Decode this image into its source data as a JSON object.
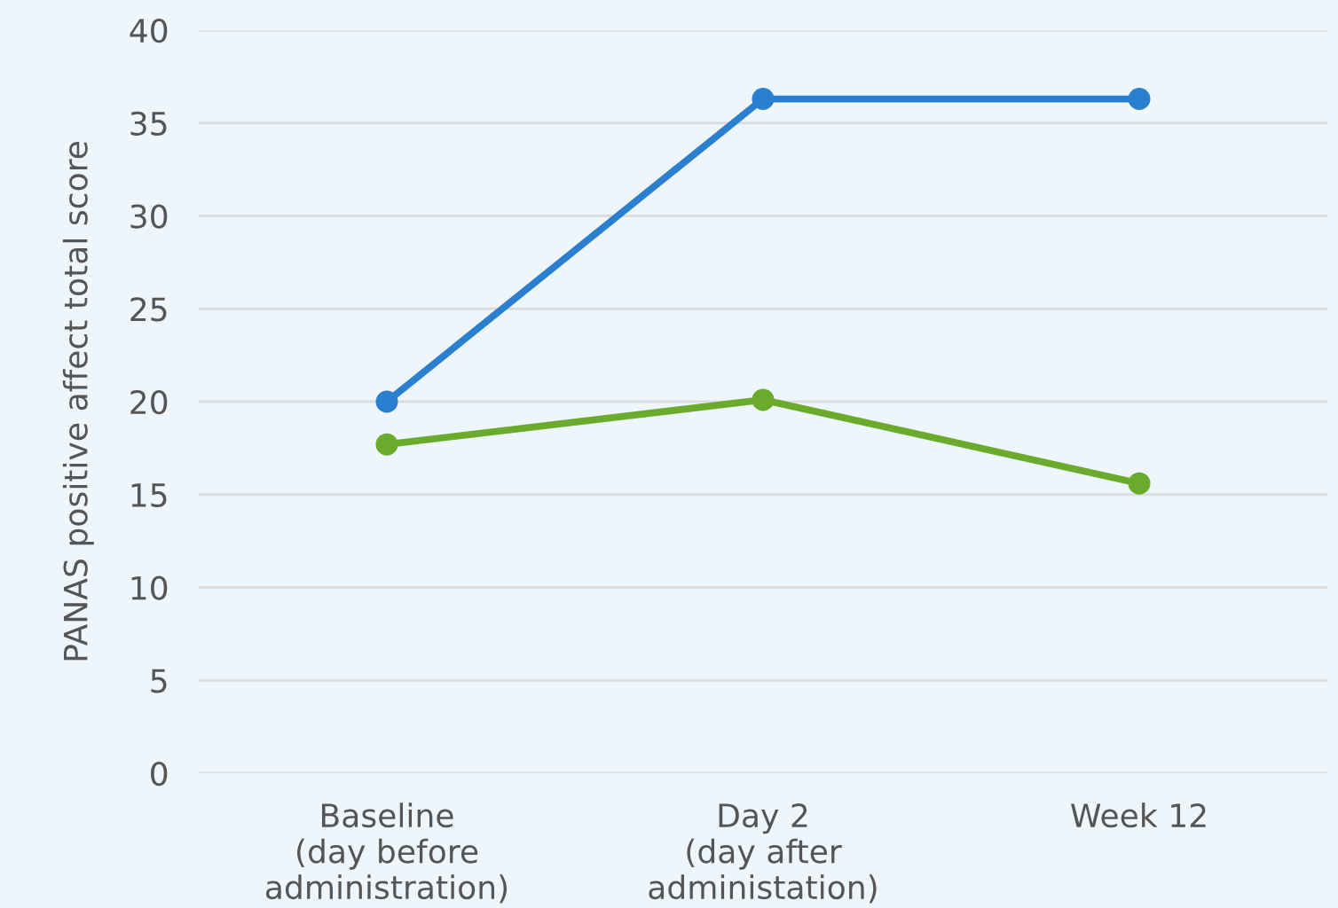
{
  "chart_data": {
    "type": "line",
    "ylabel": "PANAS positive affect total score",
    "categories": [
      "Baseline\n(day before\nadministration)",
      "Day 2\n(day after\nadministation)",
      "Week 12"
    ],
    "series": [
      {
        "color": "#2b7fcf",
        "values": [
          20,
          36.3,
          36.3
        ]
      },
      {
        "color": "#6aab2e",
        "values": [
          17.7,
          20.1,
          15.6
        ]
      }
    ],
    "ylim": [
      0,
      40
    ],
    "yticks": [
      0,
      5,
      10,
      15,
      20,
      25,
      30,
      35,
      40
    ],
    "grid": "y",
    "marker": "circle",
    "line_style": "solid"
  }
}
